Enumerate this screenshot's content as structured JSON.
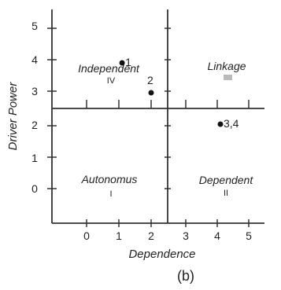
{
  "chart_data": {
    "type": "scatter",
    "title": "",
    "xlabel": "Dependence",
    "ylabel": "Driver Power",
    "caption": "(b)",
    "grid": false,
    "x_ticks_left": [
      "0",
      "1",
      "2"
    ],
    "x_ticks_right": [
      "3",
      "4",
      "5"
    ],
    "y_ticks_bottom": [
      "0",
      "1",
      "2"
    ],
    "y_ticks_top": [
      "3",
      "4",
      "5"
    ],
    "x_divider": 2.5,
    "y_divider": 2.5,
    "quadrants": [
      {
        "name": "Independent",
        "roman": "IV"
      },
      {
        "name": "Linkage",
        "roman": "III"
      },
      {
        "name": "Autonomus",
        "roman": "I"
      },
      {
        "name": "Dependent",
        "roman": "II"
      }
    ],
    "points": [
      {
        "label": "1",
        "x": 1.1,
        "y": 3.9
      },
      {
        "label": "2",
        "x": 2.0,
        "y": 2.95
      },
      {
        "label": "3,4",
        "x": 4.1,
        "y": 2.05
      }
    ]
  }
}
